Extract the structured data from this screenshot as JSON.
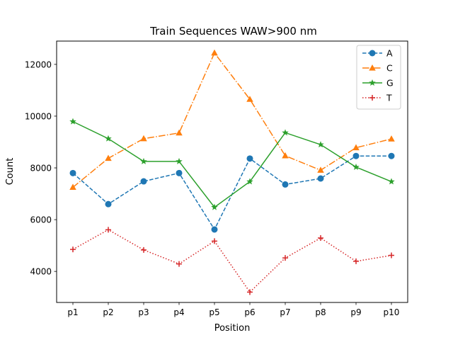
{
  "chart_data": {
    "type": "line",
    "title": "Train Sequences WAW>900 nm",
    "xlabel": "Position",
    "ylabel": "Count",
    "categories": [
      "p1",
      "p2",
      "p3",
      "p4",
      "p5",
      "p6",
      "p7",
      "p8",
      "p9",
      "p10"
    ],
    "ylim": [
      2800,
      12900
    ],
    "yticks": [
      4000,
      6000,
      8000,
      10000,
      12000
    ],
    "yticklabels": [
      "4000",
      "6000",
      "8000",
      "10000",
      "12000"
    ],
    "grid": false,
    "legend_position": "top-right",
    "series": [
      {
        "name": "A",
        "color": "#1f77b4",
        "linestyle": "dashed",
        "marker": "circle",
        "values": [
          7800,
          6600,
          7480,
          7800,
          5620,
          8360,
          7360,
          7590,
          8460,
          8460
        ]
      },
      {
        "name": "C",
        "color": "#ff7f0e",
        "linestyle": "dashdot",
        "marker": "triangle",
        "values": [
          7250,
          8370,
          9130,
          9350,
          12440,
          10650,
          8470,
          7910,
          8780,
          9120
        ]
      },
      {
        "name": "G",
        "color": "#2ca02c",
        "linestyle": "solid",
        "marker": "star",
        "values": [
          9790,
          9130,
          8250,
          8250,
          6480,
          7470,
          9360,
          8900,
          8030,
          7470
        ]
      },
      {
        "name": "T",
        "color": "#d62728",
        "linestyle": "dotted",
        "marker": "plus",
        "values": [
          4850,
          5610,
          4830,
          4290,
          5170,
          3200,
          4520,
          5290,
          4390,
          4620
        ]
      }
    ]
  }
}
